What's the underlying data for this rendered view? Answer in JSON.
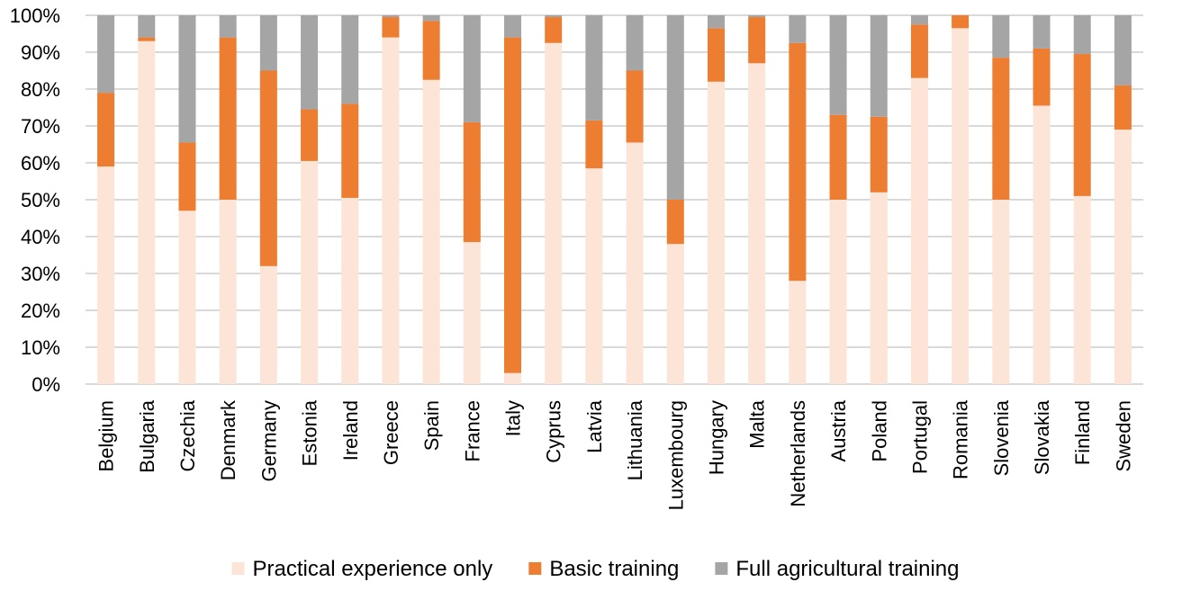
{
  "chart_data": {
    "type": "bar",
    "stacked": true,
    "y_format": "percent",
    "ylim": [
      0,
      100
    ],
    "y_ticks": [
      "0%",
      "10%",
      "20%",
      "30%",
      "40%",
      "50%",
      "60%",
      "70%",
      "80%",
      "90%",
      "100%"
    ],
    "grid": true,
    "legend_position": "bottom",
    "categories": [
      "Belgium",
      "Bulgaria",
      "Czechia",
      "Denmark",
      "Germany",
      "Estonia",
      "Ireland",
      "Greece",
      "Spain",
      "France",
      "Italy",
      "Cyprus",
      "Latvia",
      "Lithuania",
      "Luxembourg",
      "Hungary",
      "Malta",
      "Netherlands",
      "Austria",
      "Poland",
      "Portugal",
      "Romania",
      "Slovenia",
      "Slovakia",
      "Finland",
      "Sweden"
    ],
    "series": [
      {
        "name": "Practical experience only",
        "color": "#fce4d6",
        "values": [
          59,
          93,
          47,
          50,
          32,
          60.5,
          50.5,
          94,
          82.5,
          38.5,
          3,
          92.5,
          58.5,
          65.5,
          38,
          82,
          87,
          28,
          50,
          52,
          83,
          96.5,
          50,
          75.5,
          51,
          69
        ]
      },
      {
        "name": "Basic training",
        "color": "#ed7d31",
        "values": [
          20,
          1,
          18.5,
          44,
          53,
          14,
          25.5,
          5.5,
          16,
          32.5,
          91,
          7,
          13,
          19.5,
          12,
          14.5,
          12.5,
          64.5,
          23,
          20.5,
          14.5,
          3.5,
          38.5,
          15.5,
          38.5,
          12
        ]
      },
      {
        "name": "Full agricultural training",
        "color": "#a5a5a5",
        "values": [
          21,
          6,
          34.5,
          6,
          15,
          25.5,
          24,
          0.5,
          1.5,
          29,
          6,
          0.5,
          28.5,
          15,
          50,
          3.5,
          0.5,
          7.5,
          27,
          27.5,
          2.5,
          0,
          11.5,
          9,
          10.5,
          19
        ]
      }
    ]
  }
}
